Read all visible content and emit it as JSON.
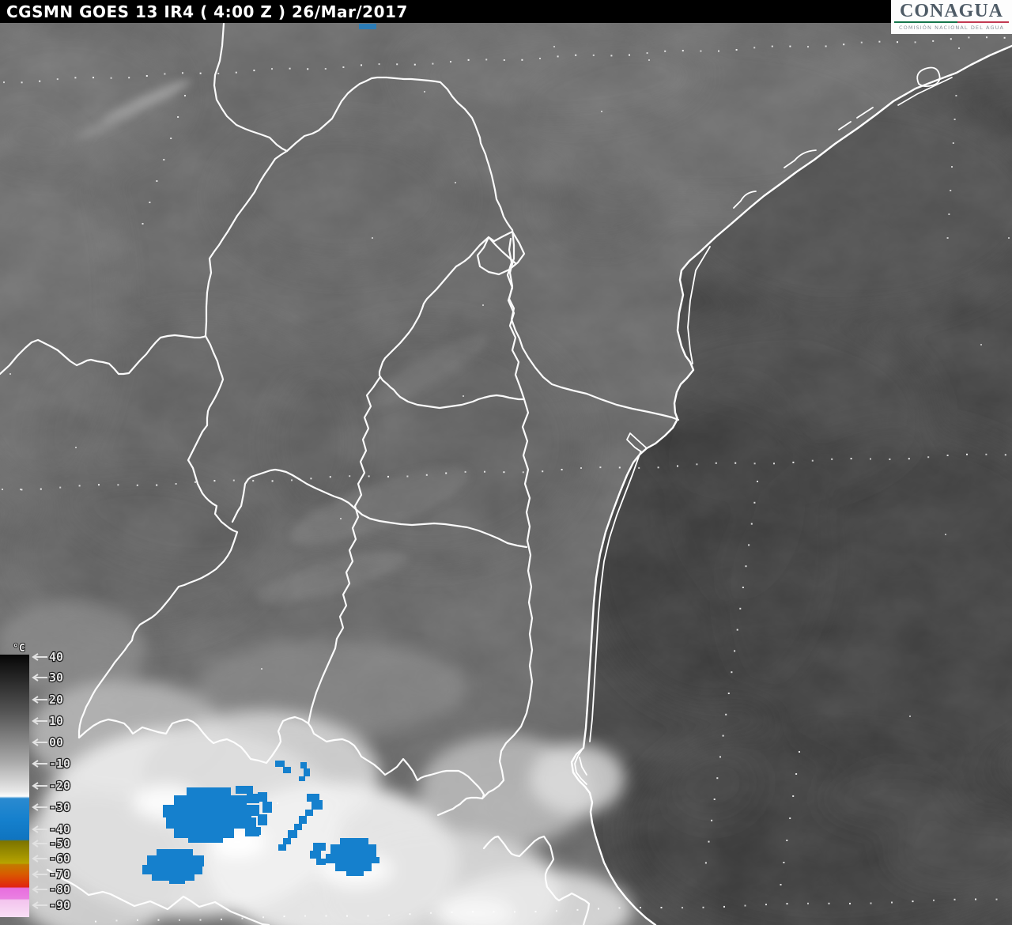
{
  "header": {
    "title": "CGSMN GOES 13 IR4 ( 4:00 Z ) 26/Mar/2017"
  },
  "logo": {
    "name": "CONAGUA",
    "subtitle": "COMISIÓN NACIONAL DEL AGUA",
    "green": "#15764b",
    "red": "#c23a52",
    "text_color": "#4e5b66"
  },
  "scale": {
    "unit": "°C",
    "labels": [
      "40",
      "30",
      "20",
      "10",
      "00",
      "-10",
      "-20",
      "-30",
      "-40",
      "-50",
      "-60",
      "-70",
      "-80",
      "-90"
    ],
    "colors": {
      "gray_top": "#000000",
      "gray_bottom": "#ffffff",
      "blue": "#1580cd",
      "olive": "#8f8400",
      "orange": "#cc6600",
      "red": "#dd2211",
      "magenta": "#e878de",
      "pink": "#f6d2f0"
    }
  },
  "map": {
    "border_color": "#ffffff",
    "land_color": "#6f6f6f",
    "sea_color": "#4b4b4b",
    "cold_cloud_color": "#1580cd",
    "graticule_dot_color": "#ffffff"
  }
}
